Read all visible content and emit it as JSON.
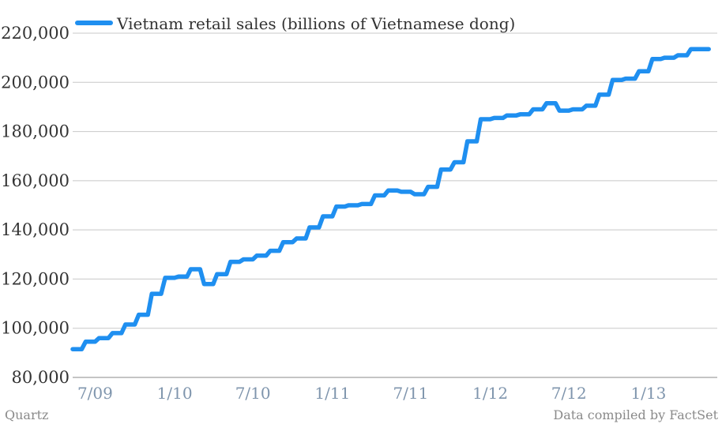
{
  "chart_data": {
    "type": "line",
    "title": "",
    "xlabel": "",
    "ylabel": "",
    "ylim": [
      80000,
      220000
    ],
    "yticks": [
      80000,
      100000,
      120000,
      140000,
      160000,
      180000,
      200000,
      220000
    ],
    "ytick_labels": [
      "80,000",
      "100,000",
      "120,000",
      "140,000",
      "160,000",
      "180,000",
      "200,000",
      "220,000"
    ],
    "xlim": [
      "2009-06-01",
      "2013-07-01"
    ],
    "xticks": [
      "2009-07-01",
      "2010-01-01",
      "2010-07-01",
      "2011-01-01",
      "2011-07-01",
      "2012-01-01",
      "2012-07-01",
      "2013-01-01"
    ],
    "xtick_labels": [
      "7/09",
      "1/10",
      "7/10",
      "1/11",
      "7/11",
      "1/12",
      "7/12",
      "1/13"
    ],
    "grid": true,
    "legend": "top-left",
    "color": "#1f8ff0",
    "series": [
      {
        "name": "Vietnam retail sales (billions of Vietnamese dong)",
        "x": [
          "2009-06-01",
          "2009-07-01",
          "2009-08-01",
          "2009-09-01",
          "2009-10-01",
          "2009-11-01",
          "2009-12-01",
          "2010-01-01",
          "2010-02-01",
          "2010-03-01",
          "2010-04-01",
          "2010-05-01",
          "2010-06-01",
          "2010-07-01",
          "2010-08-01",
          "2010-09-01",
          "2010-10-01",
          "2010-11-01",
          "2010-12-01",
          "2011-01-01",
          "2011-02-01",
          "2011-03-01",
          "2011-04-01",
          "2011-05-01",
          "2011-06-01",
          "2011-07-01",
          "2011-08-01",
          "2011-09-01",
          "2011-10-01",
          "2011-11-01",
          "2011-12-01",
          "2012-01-01",
          "2012-02-01",
          "2012-03-01",
          "2012-04-01",
          "2012-05-01",
          "2012-06-01",
          "2012-07-01",
          "2012-08-01",
          "2012-09-01",
          "2012-10-01",
          "2012-11-01",
          "2012-12-01",
          "2013-01-01",
          "2013-02-01",
          "2013-03-01",
          "2013-04-01",
          "2013-05-01",
          "2013-06-01"
        ],
        "values": [
          91500,
          94500,
          96000,
          98000,
          101500,
          105500,
          114000,
          120500,
          121000,
          124000,
          118000,
          122000,
          127000,
          128000,
          129500,
          131500,
          135000,
          136500,
          141000,
          145500,
          149500,
          150000,
          150500,
          154000,
          156000,
          155500,
          154500,
          157500,
          164500,
          167500,
          176000,
          185000,
          185500,
          186500,
          187000,
          189000,
          191500,
          188500,
          189000,
          190500,
          195000,
          201000,
          201500,
          204500,
          209500,
          210000,
          211000,
          213500,
          213500
        ]
      }
    ]
  },
  "footer": {
    "source_left": "Quartz",
    "source_right": "Data compiled by FactSet"
  }
}
